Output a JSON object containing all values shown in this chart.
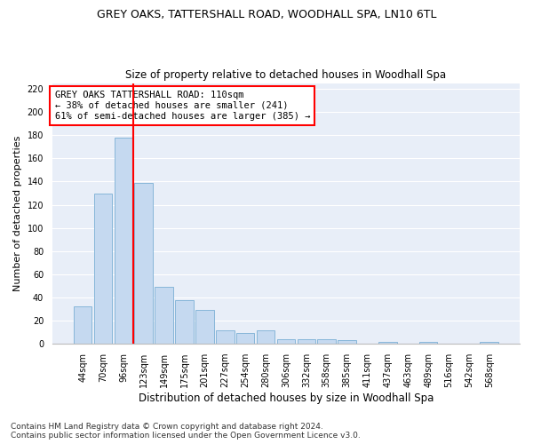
{
  "title1": "GREY OAKS, TATTERSHALL ROAD, WOODHALL SPA, LN10 6TL",
  "title2": "Size of property relative to detached houses in Woodhall Spa",
  "xlabel": "Distribution of detached houses by size in Woodhall Spa",
  "ylabel": "Number of detached properties",
  "footnote": "Contains HM Land Registry data © Crown copyright and database right 2024.\nContains public sector information licensed under the Open Government Licence v3.0.",
  "bar_labels": [
    "44sqm",
    "70sqm",
    "96sqm",
    "123sqm",
    "149sqm",
    "175sqm",
    "201sqm",
    "227sqm",
    "254sqm",
    "280sqm",
    "306sqm",
    "332sqm",
    "358sqm",
    "385sqm",
    "411sqm",
    "437sqm",
    "463sqm",
    "489sqm",
    "516sqm",
    "542sqm",
    "568sqm"
  ],
  "bar_values": [
    32,
    130,
    178,
    139,
    49,
    38,
    29,
    12,
    9,
    12,
    4,
    4,
    4,
    3,
    0,
    2,
    0,
    2,
    0,
    0,
    2
  ],
  "bar_color": "#c5d9f0",
  "bar_edge_color": "#7bafd4",
  "marker_line_color": "red",
  "annotation_line1": "GREY OAKS TATTERSHALL ROAD: 110sqm",
  "annotation_line2": "← 38% of detached houses are smaller (241)",
  "annotation_line3": "61% of semi-detached houses are larger (385) →",
  "ylim": [
    0,
    225
  ],
  "yticks": [
    0,
    20,
    40,
    60,
    80,
    100,
    120,
    140,
    160,
    180,
    200,
    220
  ],
  "fig_bg_color": "#ffffff",
  "plot_bg_color": "#e8eef8",
  "grid_color": "#ffffff",
  "title1_fontsize": 9,
  "title2_fontsize": 8.5,
  "ylabel_fontsize": 8,
  "xlabel_fontsize": 8.5,
  "tick_fontsize": 7,
  "annot_fontsize": 7.5,
  "footnote_fontsize": 6.5
}
